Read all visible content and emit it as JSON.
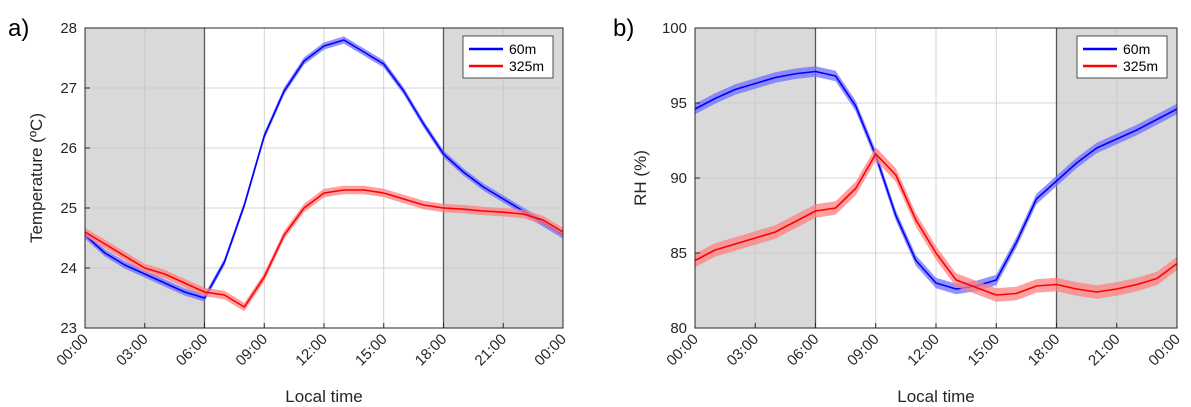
{
  "chart_data": [
    {
      "type": "line",
      "panel_label": "a)",
      "xlabel": "Local time",
      "ylabel": "Temperature (ºC)",
      "x_ticks": [
        "00:00",
        "03:00",
        "06:00",
        "09:00",
        "12:00",
        "15:00",
        "18:00",
        "21:00",
        "00:00"
      ],
      "xlim": [
        0,
        24
      ],
      "ylim": [
        23,
        28
      ],
      "y_ticks": [
        "23",
        "24",
        "25",
        "26",
        "27",
        "28"
      ],
      "y_tick_values": [
        23,
        24,
        25,
        26,
        27,
        28
      ],
      "grid": true,
      "legend_position": "top-right",
      "shaded_periods": [
        [
          0,
          6
        ],
        [
          18,
          24
        ]
      ],
      "shade_color": "#d9d9d9",
      "x_hours": [
        0,
        1,
        2,
        3,
        4,
        5,
        6,
        7,
        8,
        9,
        10,
        11,
        12,
        13,
        14,
        15,
        16,
        17,
        18,
        19,
        20,
        21,
        22,
        23,
        24
      ],
      "series": [
        {
          "name": "60m",
          "color": "#0000ff",
          "band_color": "#6f6fff",
          "values": [
            24.55,
            24.25,
            24.05,
            23.9,
            23.75,
            23.6,
            23.5,
            24.1,
            25.05,
            26.2,
            26.95,
            27.45,
            27.7,
            27.8,
            27.6,
            27.4,
            26.95,
            26.4,
            25.9,
            25.6,
            25.35,
            25.15,
            24.95,
            24.75,
            24.55
          ],
          "band_half_width": 0.06
        },
        {
          "name": "325m",
          "color": "#ff0000",
          "band_color": "#ff8080",
          "values": [
            24.6,
            24.4,
            24.2,
            24.0,
            23.9,
            23.75,
            23.6,
            23.55,
            23.35,
            23.85,
            24.55,
            25.0,
            25.25,
            25.3,
            25.3,
            25.25,
            25.15,
            25.05,
            25.0,
            24.98,
            24.95,
            24.93,
            24.9,
            24.8,
            24.6
          ],
          "band_half_width": 0.07
        }
      ]
    },
    {
      "type": "line",
      "panel_label": "b)",
      "xlabel": "Local time",
      "ylabel": "RH (%)",
      "x_ticks": [
        "00:00",
        "03:00",
        "06:00",
        "09:00",
        "12:00",
        "15:00",
        "18:00",
        "21:00",
        "00:00"
      ],
      "xlim": [
        0,
        24
      ],
      "ylim": [
        80,
        100
      ],
      "y_ticks": [
        "80",
        "85",
        "90",
        "95",
        "100"
      ],
      "y_tick_values": [
        80,
        85,
        90,
        95,
        100
      ],
      "grid": true,
      "legend_position": "top-right",
      "shaded_periods": [
        [
          0,
          6
        ],
        [
          18,
          24
        ]
      ],
      "shade_color": "#d9d9d9",
      "x_hours": [
        0,
        1,
        2,
        3,
        4,
        5,
        6,
        7,
        8,
        9,
        10,
        11,
        12,
        13,
        14,
        15,
        16,
        17,
        18,
        19,
        20,
        21,
        22,
        23,
        24
      ],
      "series": [
        {
          "name": "60m",
          "color": "#0000ff",
          "band_color": "#6f6fff",
          "values": [
            94.6,
            95.3,
            95.9,
            96.3,
            96.7,
            96.95,
            97.1,
            96.8,
            94.8,
            91.5,
            87.5,
            84.5,
            83.0,
            82.6,
            82.8,
            83.2,
            85.7,
            88.6,
            89.8,
            91.0,
            92.0,
            92.6,
            93.2,
            93.9,
            94.6
          ],
          "band_half_width": 0.35
        },
        {
          "name": "325m",
          "color": "#ff0000",
          "band_color": "#ff8080",
          "values": [
            84.5,
            85.2,
            85.6,
            86.0,
            86.4,
            87.1,
            87.8,
            88.0,
            89.3,
            91.6,
            90.2,
            87.2,
            85.0,
            83.2,
            82.7,
            82.2,
            82.3,
            82.8,
            82.9,
            82.6,
            82.4,
            82.6,
            82.9,
            83.3,
            84.3
          ],
          "band_half_width": 0.45
        }
      ]
    }
  ]
}
